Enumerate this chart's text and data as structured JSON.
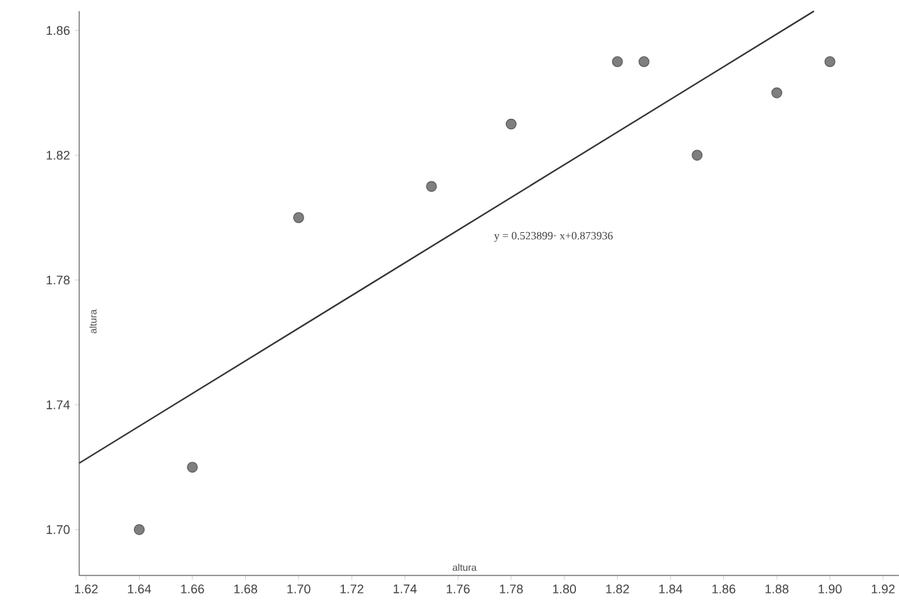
{
  "chart_data": {
    "type": "scatter",
    "xlabel": "altura",
    "ylabel": "altura",
    "x": [
      1.64,
      1.66,
      1.7,
      1.75,
      1.78,
      1.82,
      1.83,
      1.85,
      1.88,
      1.9
    ],
    "series": [
      {
        "color": "#7f7f7f",
        "values": [
          1.7,
          1.72,
          1.8,
          1.81,
          1.83,
          1.85,
          1.85,
          1.82,
          1.84,
          1.85
        ]
      },
      {
        "type": "line",
        "color": "#333333",
        "marker": "none",
        "x": [
          1.6174,
          1.894
        ],
        "values": [
          1.7213,
          1.8662
        ]
      }
    ],
    "annotations": [
      "y = 0.523899· x+0.873936"
    ],
    "marker": "circle",
    "grid": false,
    "xlim": [
      1.6174,
      1.926
    ],
    "ylim": [
      1.6853,
      1.8662
    ],
    "xticks": [
      1.62,
      1.64,
      1.66,
      1.68,
      {
        "value": 1.7,
        "label": "1.70"
      },
      1.72,
      1.74,
      1.76,
      1.78,
      {
        "value": 1.8,
        "label": "1.80"
      },
      1.82,
      1.84,
      1.86,
      1.88,
      {
        "value": 1.9,
        "label": "1.90"
      },
      1.92
    ],
    "yticks": [
      {
        "value": 1.7,
        "label": "1.70"
      },
      1.74,
      1.78,
      1.82,
      1.86
    ]
  }
}
